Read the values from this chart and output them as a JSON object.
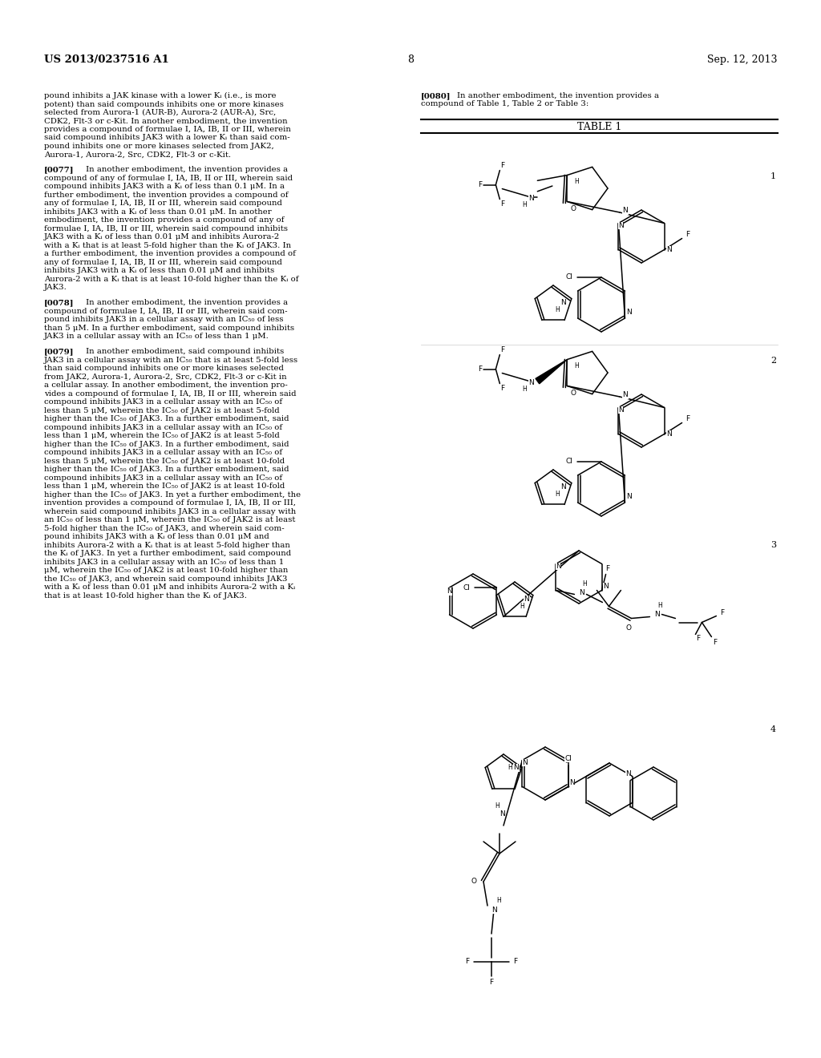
{
  "bg_color": "#ffffff",
  "header_left": "US 2013/0237516 A1",
  "header_right": "Sep. 12, 2013",
  "page_number": "8",
  "table_title": "TABLE 1",
  "p0080_line1": "[0080] In another embodiment, the invention provides a",
  "p0080_line2": "compound of Table 1, Table 2 or Table 3:",
  "compound_nums": [
    "1",
    "2",
    "3",
    "4"
  ],
  "left_col_paras": [
    {
      "tag": "",
      "lines": [
        "pound inhibits a JAK kinase with a lower Kᵢ (i.e., is more",
        "potent) than said compounds inhibits one or more kinases",
        "selected from Aurora-1 (AUR-B), Aurora-2 (AUR-A), Src,",
        "CDK2, Flt-3 or c-Kit. In another embodiment, the invention",
        "provides a compound of formulae I, IA, IB, II or III, wherein",
        "said compound inhibits JAK3 with a lower Kᵢ than said com-",
        "pound inhibits one or more kinases selected from JAK2,",
        "Aurora-1, Aurora-2, Src, CDK2, Flt-3 or c-Kit."
      ]
    },
    {
      "tag": "[0077]",
      "lines": [
        " In another embodiment, the invention provides a",
        "compound of any of formulae I, IA, IB, II or III, wherein said",
        "compound inhibits JAK3 with a Kᵢ of less than 0.1 μM. In a",
        "further embodiment, the invention provides a compound of",
        "any of formulae I, IA, IB, II or III, wherein said compound",
        "inhibits JAK3 with a Kᵢ of less than 0.01 μM. In another",
        "embodiment, the invention provides a compound of any of",
        "formulae I, IA, IB, II or III, wherein said compound inhibits",
        "JAK3 with a Kᵢ of less than 0.01 μM and inhibits Aurora-2",
        "with a Kᵢ that is at least 5-fold higher than the Kᵢ of JAK3. In",
        "a further embodiment, the invention provides a compound of",
        "any of formulae I, IA, IB, II or III, wherein said compound",
        "inhibits JAK3 with a Kᵢ of less than 0.01 μM and inhibits",
        "Aurora-2 with a Kᵢ that is at least 10-fold higher than the Kᵢ of",
        "JAK3."
      ]
    },
    {
      "tag": "[0078]",
      "lines": [
        " In another embodiment, the invention provides a",
        "compound of formulae I, IA, IB, II or III, wherein said com-",
        "pound inhibits JAK3 in a cellular assay with an IC₅₀ of less",
        "than 5 μM. In a further embodiment, said compound inhibits",
        "JAK3 in a cellular assay with an IC₅₀ of less than 1 μM."
      ]
    },
    {
      "tag": "[0079]",
      "lines": [
        " In another embodiment, said compound inhibits",
        "JAK3 in a cellular assay with an IC₅₀ that is at least 5-fold less",
        "than said compound inhibits one or more kinases selected",
        "from JAK2, Aurora-1, Aurora-2, Src, CDK2, Flt-3 or c-Kit in",
        "a cellular assay. In another embodiment, the invention pro-",
        "vides a compound of formulae I, IA, IB, II or III, wherein said",
        "compound inhibits JAK3 in a cellular assay with an IC₅₀ of",
        "less than 5 μM, wherein the IC₅₀ of JAK2 is at least 5-fold",
        "higher than the IC₅₀ of JAK3. In a further embodiment, said",
        "compound inhibits JAK3 in a cellular assay with an IC₅₀ of",
        "less than 1 μM, wherein the IC₅₀ of JAK2 is at least 5-fold",
        "higher than the IC₅₀ of JAK3. In a further embodiment, said",
        "compound inhibits JAK3 in a cellular assay with an IC₅₀ of",
        "less than 5 μM, wherein the IC₅₀ of JAK2 is at least 10-fold",
        "higher than the IC₅₀ of JAK3. In a further embodiment, said",
        "compound inhibits JAK3 in a cellular assay with an IC₅₀ of",
        "less than 1 μM, wherein the IC₅₀ of JAK2 is at least 10-fold",
        "higher than the IC₅₀ of JAK3. In yet a further embodiment, the",
        "invention provides a compound of formulae I, IA, IB, II or III,",
        "wherein said compound inhibits JAK3 in a cellular assay with",
        "an IC₅₀ of less than 1 μM, wherein the IC₅₀ of JAK2 is at least",
        "5-fold higher than the IC₅₀ of JAK3, and wherein said com-",
        "pound inhibits JAK3 with a Kᵢ of less than 0.01 μM and",
        "inhibits Aurora-2 with a Kᵢ that is at least 5-fold higher than",
        "the Kᵢ of JAK3. In yet a further embodiment, said compound",
        "inhibits JAK3 in a cellular assay with an IC₅₀ of less than 1",
        "μM, wherein the IC₅₀ of JAK2 is at least 10-fold higher than",
        "the IC₅₀ of JAK3, and wherein said compound inhibits JAK3",
        "with a Kᵢ of less than 0.01 μM and inhibits Aurora-2 with a Kᵢ",
        "that is at least 10-fold higher than the Kᵢ of JAK3."
      ]
    }
  ]
}
